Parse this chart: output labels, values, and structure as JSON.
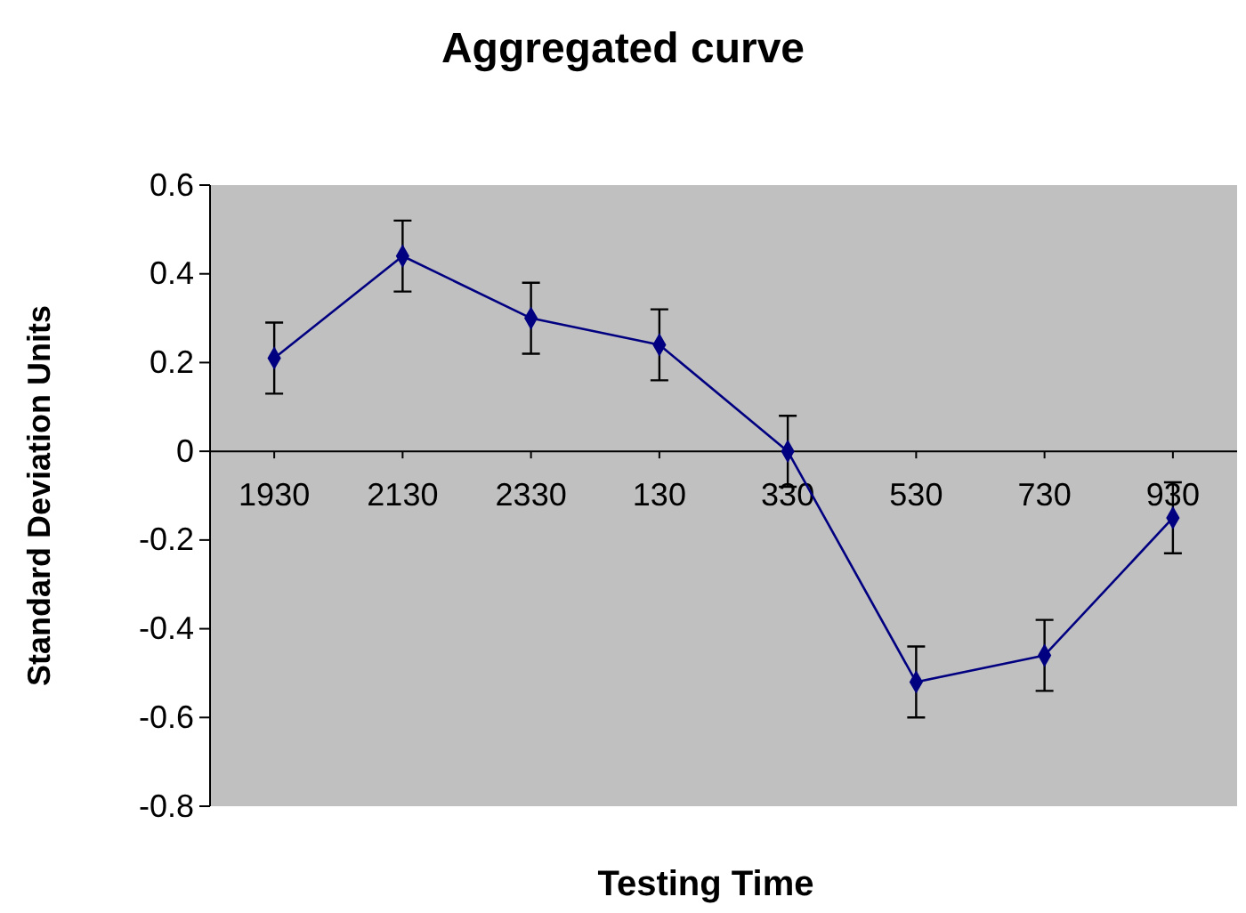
{
  "chart_data": {
    "type": "line",
    "title": "Aggregated curve",
    "xlabel": "Testing Time",
    "ylabel": "Standard Deviation Units",
    "categories": [
      "1930",
      "2130",
      "2330",
      "130",
      "330",
      "530",
      "730",
      "930"
    ],
    "series": [
      {
        "color": "#000080",
        "values": [
          0.21,
          0.44,
          0.3,
          0.24,
          0.0,
          -0.52,
          -0.46,
          -0.15
        ],
        "errors": [
          0.08,
          0.08,
          0.08,
          0.08,
          0.08,
          0.08,
          0.08,
          0.08
        ]
      }
    ],
    "ylim": [
      -0.8,
      0.6
    ],
    "yticks": [
      -0.8,
      -0.6,
      -0.4,
      -0.2,
      0,
      0.2,
      0.4,
      0.6
    ],
    "marker": "diamond",
    "grid": false
  }
}
